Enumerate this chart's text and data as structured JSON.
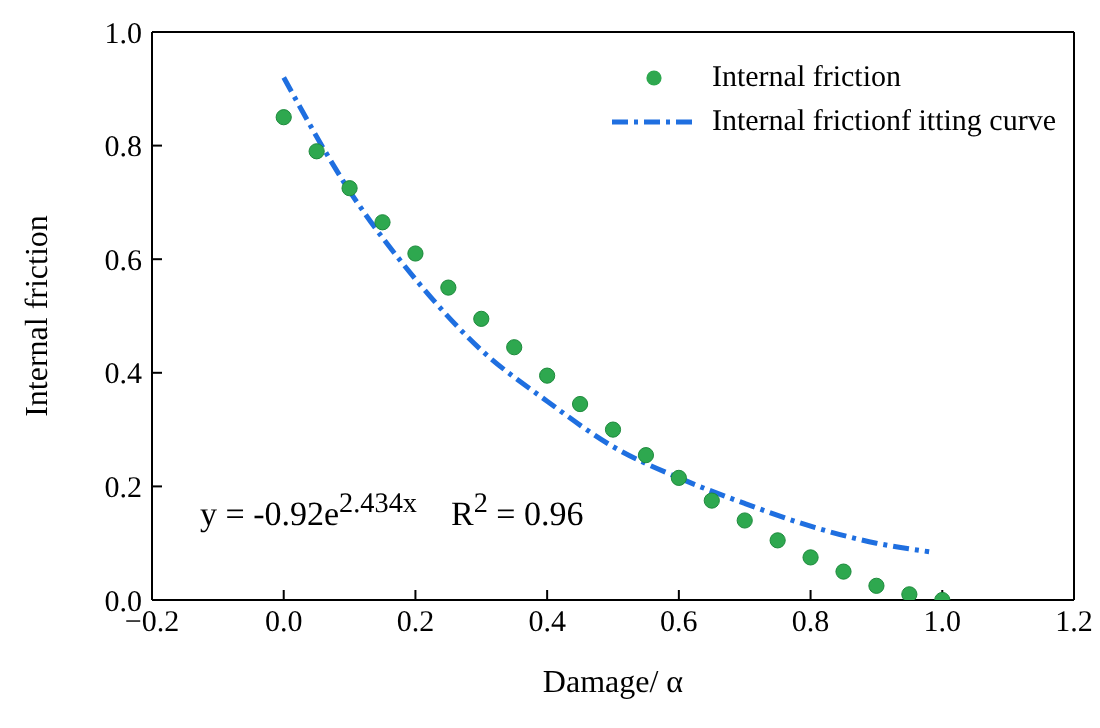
{
  "chart_data": {
    "type": "scatter",
    "xlabel": "Damage/ α",
    "ylabel": "Internal friction",
    "xlim": [
      -0.2,
      1.2
    ],
    "xticks": [
      -0.2,
      {
        "value": 0,
        "label": "0.0"
      },
      0.2,
      0.4,
      0.6,
      0.8,
      {
        "value": 1,
        "label": "1.0"
      },
      1.2
    ],
    "ylim": [
      0,
      1
    ],
    "yticks": [
      {
        "value": 0,
        "label": "0.0"
      },
      0.2,
      0.4,
      0.6,
      0.8,
      {
        "value": 1,
        "label": "1.0"
      }
    ],
    "legend": "top right",
    "annotations": [
      "y = -0.92e$^{2.434x}$    R$^{2}$ = 0.96"
    ],
    "series": [
      {
        "name": "Internal friction",
        "marker": "circle",
        "color": "#2ea84f",
        "x": [
          0,
          0.05,
          0.1,
          0.15,
          0.2,
          0.25,
          0.3,
          0.35,
          0.4,
          0.45,
          0.5,
          0.55,
          0.6,
          0.65,
          0.7,
          0.75,
          0.8,
          0.85,
          0.9,
          0.95,
          1.0
        ],
        "values": [
          0.85,
          0.79,
          0.725,
          0.665,
          0.61,
          0.55,
          0.495,
          0.445,
          0.395,
          0.345,
          0.3,
          0.255,
          0.215,
          0.175,
          0.14,
          0.105,
          0.075,
          0.05,
          0.025,
          0.01,
          0.0
        ]
      },
      {
        "name": "Internal frictionf itting curve",
        "type": "line",
        "line_style": "dashed",
        "marker": "none",
        "color": "#1f6fe0",
        "x": [
          0,
          0.1,
          0.2,
          0.3,
          0.4,
          0.5,
          0.6,
          0.7,
          0.8,
          0.9,
          0.98
        ],
        "values": [
          0.92,
          0.72,
          0.565,
          0.44,
          0.35,
          0.27,
          0.215,
          0.17,
          0.13,
          0.1,
          0.085
        ]
      }
    ]
  }
}
